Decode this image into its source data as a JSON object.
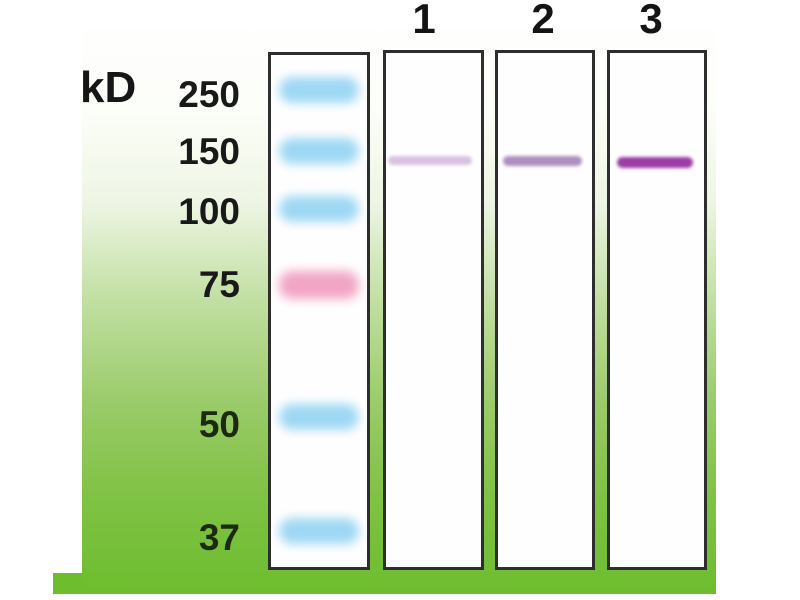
{
  "figure": {
    "title": "Western blot with molecular weight ladder and three sample lanes",
    "unit_label": "kD",
    "colors": {
      "background_green": "#6ebd2e",
      "lane_border": "#2e2e2e",
      "ladder_blue": "#9ed8f4",
      "ladder_pink": "#f2a5c5"
    },
    "ladder": {
      "markers": [
        {
          "label": "250",
          "kd": 250,
          "color": "#9ed8f4"
        },
        {
          "label": "150",
          "kd": 150,
          "color": "#9ed8f4"
        },
        {
          "label": "100",
          "kd": 100,
          "color": "#9ed8f4"
        },
        {
          "label": "75",
          "kd": 75,
          "color": "#f2a5c5"
        },
        {
          "label": "50",
          "kd": 50,
          "color": "#9ed8f4"
        },
        {
          "label": "37",
          "kd": 37,
          "color": "#9ed8f4"
        }
      ]
    },
    "lanes": [
      {
        "label": "1",
        "band": {
          "position_kd_approx": 140,
          "intensity": "weak",
          "color": "#d7c3e0"
        }
      },
      {
        "label": "2",
        "band": {
          "position_kd_approx": 140,
          "intensity": "medium",
          "color": "#ad8fc0"
        }
      },
      {
        "label": "3",
        "band": {
          "position_kd_approx": 140,
          "intensity": "strong",
          "color": "#9c3ea6"
        }
      }
    ]
  }
}
